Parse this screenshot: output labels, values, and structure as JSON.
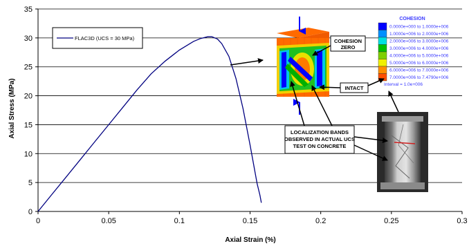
{
  "chart_data": {
    "type": "line",
    "xlabel": "Axial Strain (%)",
    "ylabel": "Axial Stress (MPa)",
    "xlim": [
      0,
      0.3
    ],
    "ylim": [
      0,
      35
    ],
    "x_ticks": [
      "0",
      "0.05",
      "0.1",
      "0.15",
      "0.2",
      "0.25",
      "0.3"
    ],
    "y_ticks": [
      "0",
      "5",
      "10",
      "15",
      "20",
      "25",
      "30",
      "35"
    ],
    "grid": "horizontal",
    "legend_position": "top-left",
    "series": [
      {
        "name": "FLAC3D (UCS = 30 MPa)",
        "color": "#000080",
        "x": [
          0,
          0.01,
          0.02,
          0.03,
          0.04,
          0.05,
          0.06,
          0.07,
          0.08,
          0.09,
          0.1,
          0.11,
          0.115,
          0.12,
          0.123,
          0.127,
          0.13,
          0.135,
          0.14,
          0.145,
          0.15,
          0.153,
          0.155,
          0.157,
          0.158
        ],
        "y": [
          0,
          3.0,
          6.0,
          9.0,
          12.0,
          15.0,
          18.0,
          21.0,
          23.8,
          26.0,
          27.9,
          29.4,
          29.9,
          30.2,
          30.2,
          29.8,
          29.0,
          26.8,
          23.0,
          17.8,
          11.5,
          7.5,
          4.8,
          2.8,
          1.5
        ]
      }
    ]
  },
  "colorbar": {
    "title": "COHESION",
    "entries": [
      {
        "label": "0.0000e+000 to  1.0000e+006",
        "color": "#0000ff"
      },
      {
        "label": "1.0000e+006 to  2.0000e+006",
        "color": "#0090ff"
      },
      {
        "label": "2.0000e+006 to  3.0000e+006",
        "color": "#00e0e0"
      },
      {
        "label": "3.0000e+006 to  4.0000e+006",
        "color": "#00c000"
      },
      {
        "label": "4.0000e+006 to  5.0000e+006",
        "color": "#7fd000"
      },
      {
        "label": "5.0000e+006 to  6.0000e+006",
        "color": "#f0f000"
      },
      {
        "label": "6.0000e+006 to  7.0000e+006",
        "color": "#ff9000"
      },
      {
        "label": "7.0000e+006 to  7.4790e+006",
        "color": "#ff5000"
      }
    ],
    "interval": "Interval =  1.0e+006"
  },
  "callouts": {
    "cohesion_zero_line1": "COHESION",
    "cohesion_zero_line2": "ZERO",
    "intact": "INTACT",
    "localization_line1": "LOCALIZATION BANDS",
    "localization_line2": "OBSERVED IN ACTUAL UCS",
    "localization_line3": "TEST ON CONCRETE"
  }
}
